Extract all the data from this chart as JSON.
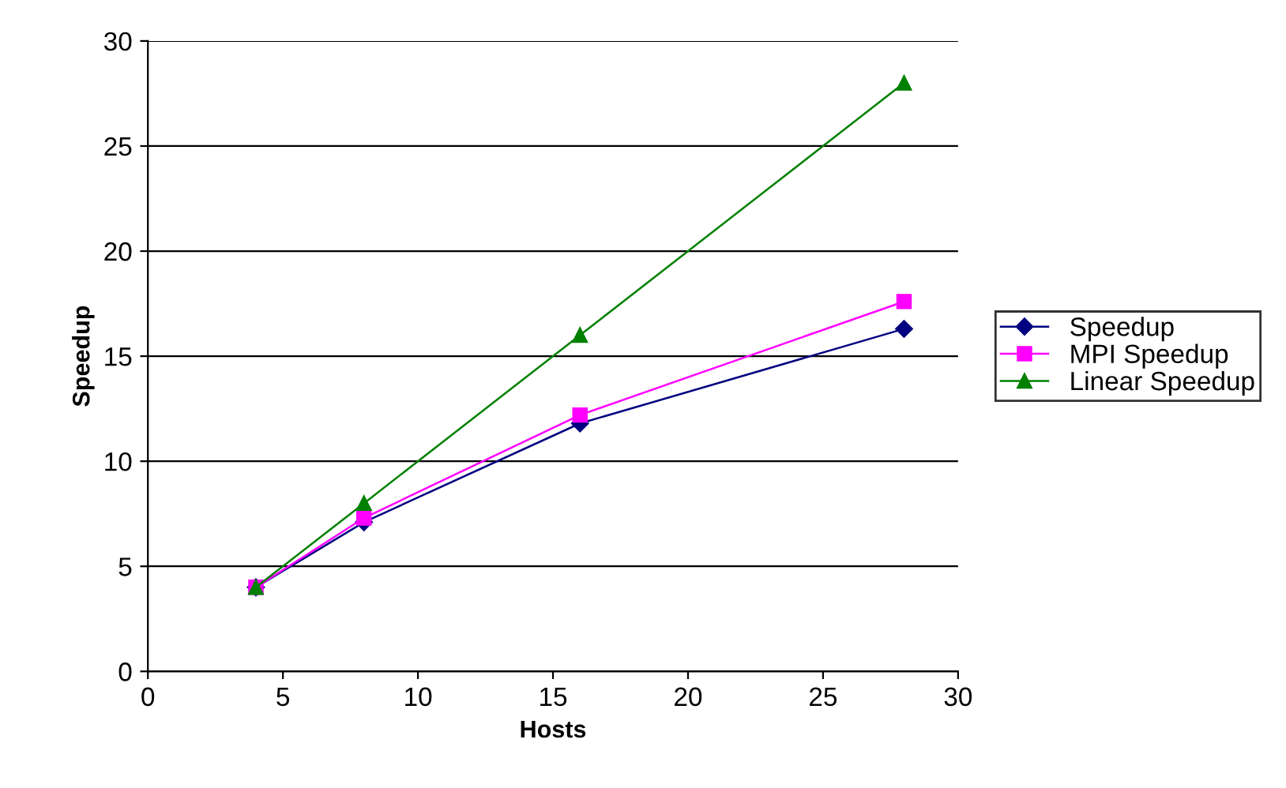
{
  "chart_data": {
    "type": "line",
    "xlabel": "Hosts",
    "ylabel": "Speedup",
    "x": [
      4,
      8,
      16,
      28
    ],
    "series": [
      {
        "name": "Speedup",
        "color": "#000080",
        "marker": "diamond",
        "values": [
          4,
          7.1,
          11.8,
          16.3
        ]
      },
      {
        "name": "MPI Speedup",
        "color": "#ff00ff",
        "marker": "square",
        "values": [
          4,
          7.3,
          12.2,
          17.6
        ]
      },
      {
        "name": "Linear Speedup",
        "color": "#008000",
        "marker": "triangle",
        "values": [
          4,
          8,
          16,
          28
        ]
      }
    ],
    "xlim": [
      0,
      30
    ],
    "xticks": [
      0,
      5,
      10,
      15,
      20,
      25,
      30
    ],
    "ylim": [
      0,
      30
    ],
    "yticks": [
      0,
      5,
      10,
      15,
      20,
      25,
      30
    ],
    "grid": "y",
    "legend": "right",
    "line_style": "solid"
  }
}
